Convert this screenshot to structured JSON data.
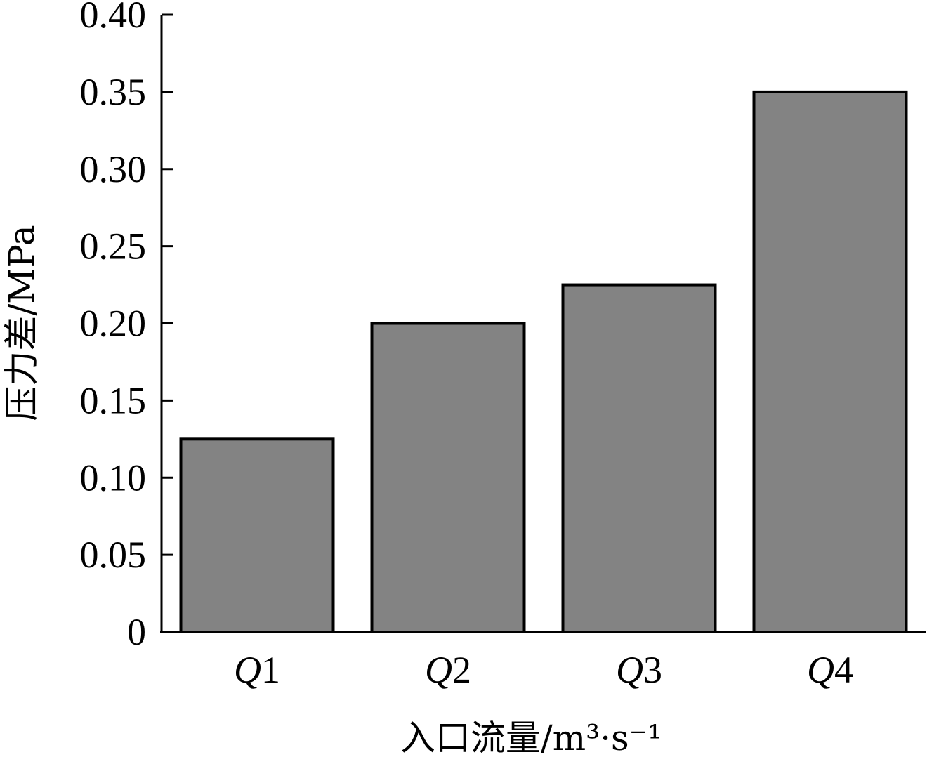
{
  "chart_data": {
    "type": "bar",
    "categories": [
      "Q1",
      "Q2",
      "Q3",
      "Q4"
    ],
    "values": [
      0.125,
      0.2,
      0.225,
      0.35
    ],
    "title": "",
    "xlabel": "入口流量/m³·s⁻¹",
    "ylabel": "压力差/MPa",
    "ylim": [
      0,
      0.4
    ],
    "yticks": [
      "0",
      "0.05",
      "0.10",
      "0.15",
      "0.20",
      "0.25",
      "0.30",
      "0.35",
      "0.40"
    ],
    "grid": false,
    "colors": {
      "bar": "#838383",
      "edge": "#000000"
    }
  }
}
